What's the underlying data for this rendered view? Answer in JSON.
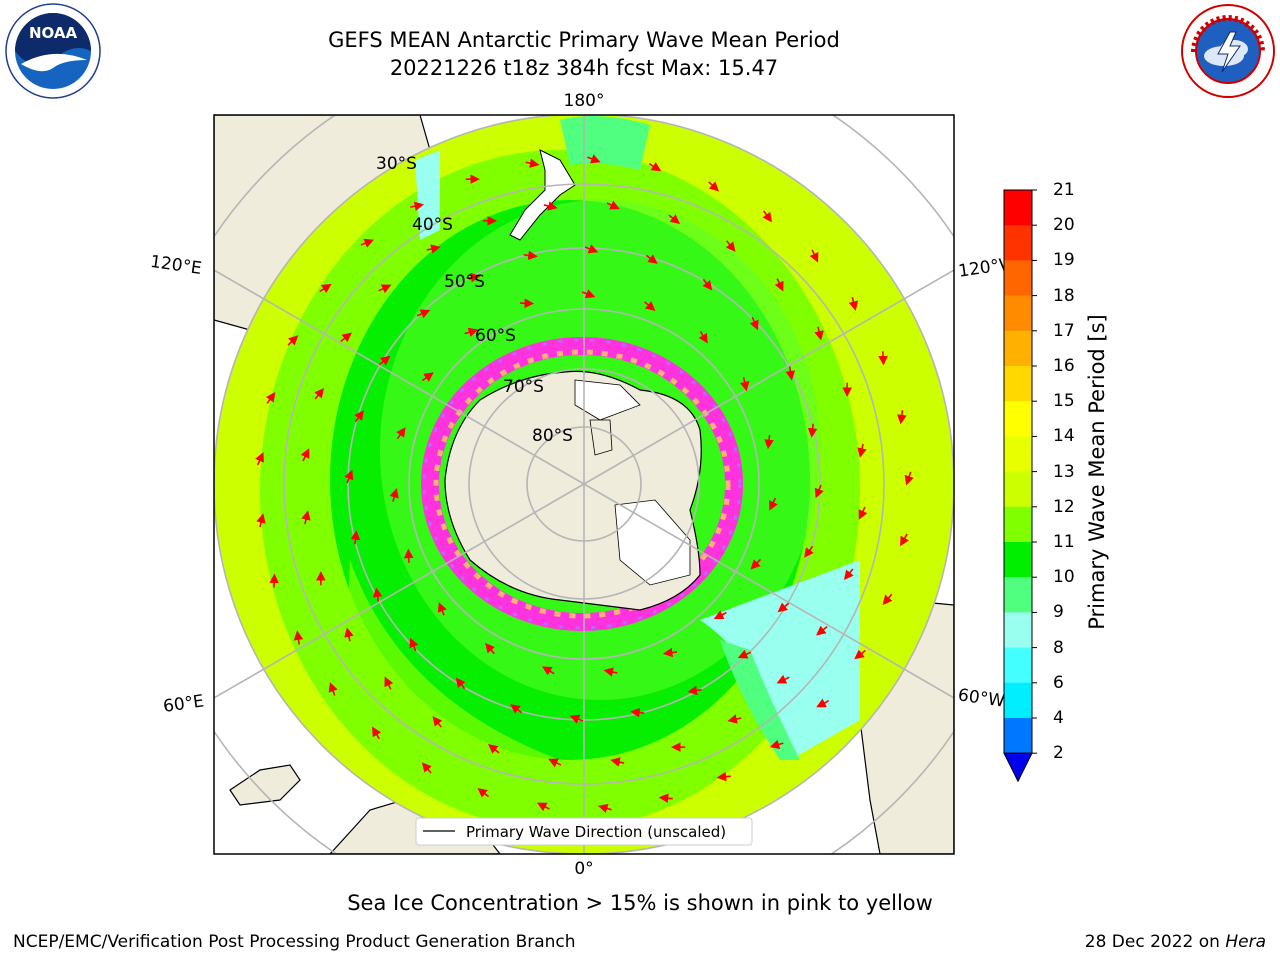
{
  "header": {
    "title_line1": "GEFS MEAN Antarctic Primary Wave Mean Period",
    "title_line2": "20221226 t18z 384h fcst   Max: 15.47"
  },
  "logos": {
    "left": {
      "icon": "noaa-logo",
      "text": "NOAA",
      "ring_text": "NATIONAL OCEANIC AND ATMOSPHERIC ADMINISTRATION · U.S. DEPARTMENT OF COMMERCE"
    },
    "right": {
      "icon": "nws-logo",
      "ring_text": "NATIONAL WEATHER SERVICE"
    }
  },
  "map": {
    "projection": "south-polar-stereographic",
    "longitude_labels": {
      "top": "180°",
      "left_upper": "120°E",
      "right_upper": "120°W",
      "left_lower": "60°E",
      "right_lower": "60°W",
      "bottom": "0°"
    },
    "latitude_labels": [
      "30°S",
      "40°S",
      "50°S",
      "60°S",
      "70°S",
      "80°S"
    ],
    "legend_label": "Primary Wave Direction (unscaled)",
    "arrow_color": "#ff0000",
    "land_color": "#efecdc"
  },
  "colorbar": {
    "label": "Primary Wave Mean Period [s]",
    "ticks": [
      "21",
      "20",
      "19",
      "18",
      "17",
      "16",
      "15",
      "14",
      "13",
      "12",
      "11",
      "10",
      "9",
      "8",
      "6",
      "4",
      "2"
    ],
    "colors_top_to_bottom": [
      "#ff0000",
      "#ff3300",
      "#ff6600",
      "#ff8c00",
      "#ffb000",
      "#ffd800",
      "#ffff00",
      "#e8ff00",
      "#ccff00",
      "#80ff00",
      "#00ee00",
      "#50ff80",
      "#99ffee",
      "#44ffff",
      "#00eeff",
      "#0077ff"
    ],
    "extend_color": "#0000ee"
  },
  "caption": "Sea Ice Concentration > 15% is shown in pink to yellow",
  "footer": {
    "left": "NCEP/EMC/Verification Post Processing Product Generation Branch",
    "right_date": "28 Dec 2022 on ",
    "right_host": "Hera"
  }
}
